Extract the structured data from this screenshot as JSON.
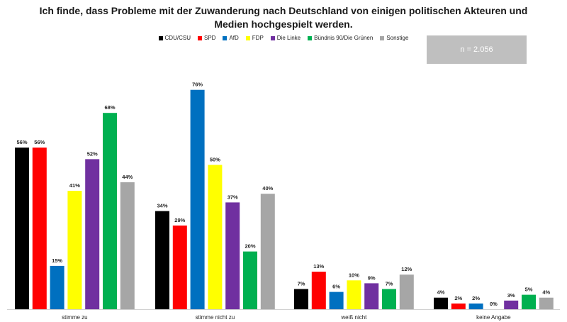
{
  "title_line1": "Ich finde, dass Probleme mit der Zuwanderung nach Deutschland von einigen politischen Akteuren und",
  "title_line2": "Medien hochgespielt werden.",
  "sample_note": "n = 2.056",
  "colors": {
    "CDU/CSU": "#000000",
    "SPD": "#ff0000",
    "AfD": "#0070c0",
    "FDP": "#ffff00",
    "Die Linke": "#7030a0",
    "Bündnis 90/Die Grünen": "#00b050",
    "Sonstige": "#a6a6a6"
  },
  "chart_data": {
    "type": "bar",
    "title": "Ich finde, dass Probleme mit der Zuwanderung nach Deutschland von einigen politischen Akteuren und Medien hochgespielt werden.",
    "categories": [
      "stimme zu",
      "stimme nicht zu",
      "weiß nicht",
      "keine Angabe"
    ],
    "series": [
      {
        "name": "CDU/CSU",
        "values": [
          56,
          34,
          7,
          4
        ]
      },
      {
        "name": "SPD",
        "values": [
          56,
          29,
          13,
          2
        ]
      },
      {
        "name": "AfD",
        "values": [
          15,
          76,
          6,
          2
        ]
      },
      {
        "name": "FDP",
        "values": [
          41,
          50,
          10,
          0
        ]
      },
      {
        "name": "Die Linke",
        "values": [
          52,
          37,
          9,
          3
        ]
      },
      {
        "name": "Bündnis 90/Die Grünen",
        "values": [
          68,
          20,
          7,
          5
        ]
      },
      {
        "name": "Sonstige",
        "values": [
          44,
          40,
          12,
          4
        ]
      }
    ],
    "value_suffix": "%",
    "ylim": [
      0,
      80
    ],
    "grid": false,
    "legend_position": "top-center"
  }
}
